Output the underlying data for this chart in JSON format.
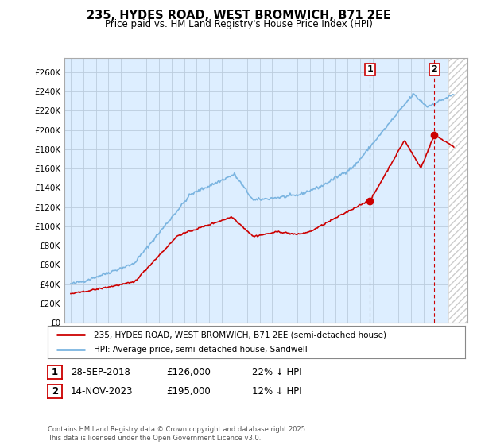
{
  "title": "235, HYDES ROAD, WEST BROMWICH, B71 2EE",
  "subtitle": "Price paid vs. HM Land Registry's House Price Index (HPI)",
  "ylabel_ticks": [
    "£0",
    "£20K",
    "£40K",
    "£60K",
    "£80K",
    "£100K",
    "£120K",
    "£140K",
    "£160K",
    "£180K",
    "£200K",
    "£220K",
    "£240K",
    "£260K"
  ],
  "ytick_values": [
    0,
    20000,
    40000,
    60000,
    80000,
    100000,
    120000,
    140000,
    160000,
    180000,
    200000,
    220000,
    240000,
    260000
  ],
  "ylim": [
    0,
    275000
  ],
  "xlim_start": 1994.5,
  "xlim_end": 2026.5,
  "hpi_color": "#7ab4e0",
  "sale_color": "#cc0000",
  "sale1_x": 2018.75,
  "sale1_price": 126000,
  "sale2_x": 2023.88,
  "sale2_price": 195000,
  "future_start": 2025.0,
  "legend_line1": "235, HYDES ROAD, WEST BROMWICH, B71 2EE (semi-detached house)",
  "legend_line2": "HPI: Average price, semi-detached house, Sandwell",
  "table_row1_label": "1",
  "table_row1_date": "28-SEP-2018",
  "table_row1_price": "£126,000",
  "table_row1_hpi": "22% ↓ HPI",
  "table_row2_label": "2",
  "table_row2_date": "14-NOV-2023",
  "table_row2_price": "£195,000",
  "table_row2_hpi": "12% ↓ HPI",
  "footnote": "Contains HM Land Registry data © Crown copyright and database right 2025.\nThis data is licensed under the Open Government Licence v3.0.",
  "background_color": "#ffffff",
  "plot_bg_color": "#ddeeff",
  "grid_color": "#bbccdd"
}
